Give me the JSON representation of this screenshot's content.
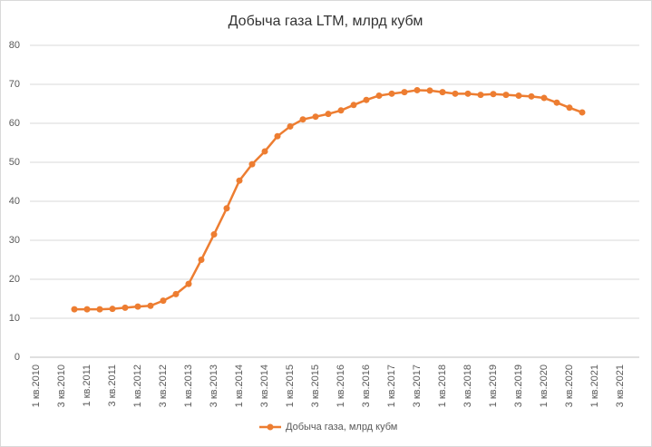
{
  "chart_data": {
    "type": "line",
    "title": "Добыча газа LTM, млрд кубм",
    "categories": [
      "1 кв.2010",
      null,
      "3 кв.2010",
      null,
      "1 кв.2011",
      null,
      "3 кв.2011",
      null,
      "1 кв.2012",
      null,
      "3 кв.2012",
      null,
      "1 кв.2013",
      null,
      "3 кв.2013",
      null,
      "1 кв.2014",
      null,
      "3 кв.2014",
      null,
      "1 кв.2015",
      null,
      "3 кв.2015",
      null,
      "1 кв.2016",
      null,
      "3 кв.2016",
      null,
      "1 кв.2017",
      null,
      "3 кв.2017",
      null,
      "1 кв.2018",
      null,
      "3 кв.2018",
      null,
      "1 кв.2019",
      null,
      "3 кв.2019",
      null,
      "1 кв.2020",
      null,
      "3 кв.2020",
      null,
      "1 кв.2021",
      null,
      "3 кв.2021",
      null
    ],
    "series": [
      {
        "name": "Добыча газа, млрд кубм",
        "color": "#ed7d31",
        "values": [
          null,
          null,
          null,
          12.3,
          12.3,
          12.3,
          12.4,
          12.7,
          13.0,
          13.2,
          14.5,
          16.2,
          18.8,
          25.0,
          31.5,
          38.2,
          45.3,
          49.5,
          52.8,
          56.7,
          59.2,
          61.0,
          61.7,
          62.4,
          63.3,
          64.7,
          66.0,
          67.1,
          67.6,
          68.0,
          68.5,
          68.4,
          68.0,
          67.6,
          67.6,
          67.3,
          67.5,
          67.3,
          67.1,
          66.9,
          66.5,
          65.3,
          64.0,
          62.8,
          null,
          null,
          null,
          null
        ]
      }
    ],
    "ylim": [
      0,
      80
    ],
    "yticks": [
      0,
      10,
      20,
      30,
      40,
      50,
      60,
      70,
      80
    ],
    "grid": true,
    "legend": "bottom"
  }
}
